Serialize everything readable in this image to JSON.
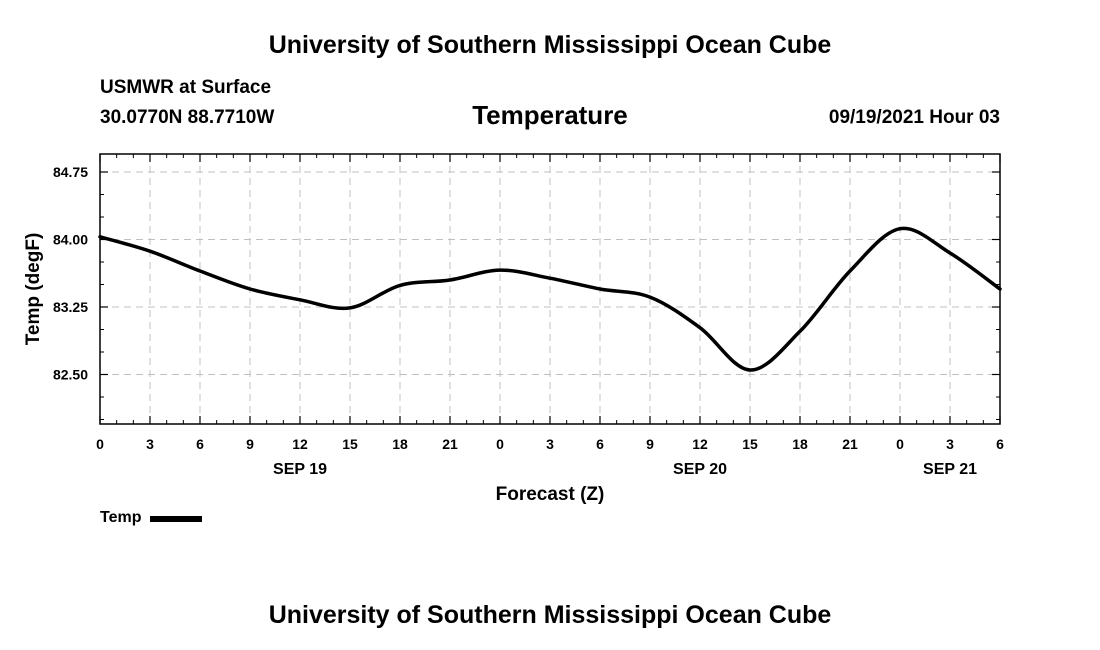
{
  "header": {
    "title": "University of Southern Mississippi Ocean Cube",
    "station": "USMWR at Surface",
    "coordinates": "30.0770N  88.7710W",
    "datetime": "09/19/2021 Hour 03"
  },
  "footer": {
    "title": "University of Southern Mississippi Ocean Cube"
  },
  "legend": {
    "label": "Temp"
  },
  "colors": {
    "line": "#000000",
    "grid": "#c0c0c0",
    "background": "#ffffff"
  },
  "chart_data": {
    "type": "line",
    "title": "Temperature",
    "xlabel": "Forecast (Z)",
    "ylabel": "Temp (degF)",
    "xlim": [
      0,
      54
    ],
    "ylim": [
      81.95,
      84.95
    ],
    "yticks": [
      84.75,
      84.0,
      83.25,
      82.5
    ],
    "ytick_labels": [
      "84.75",
      "84.00",
      "83.25",
      "82.50"
    ],
    "xticks": [
      0,
      3,
      6,
      9,
      12,
      15,
      18,
      21,
      24,
      27,
      30,
      33,
      36,
      39,
      42,
      45,
      48,
      51,
      54
    ],
    "xtick_labels": [
      "0",
      "3",
      "6",
      "9",
      "12",
      "15",
      "18",
      "21",
      "0",
      "3",
      "6",
      "9",
      "12",
      "15",
      "18",
      "21",
      "0",
      "3",
      "6"
    ],
    "date_labels": [
      {
        "hour": 12,
        "label": "SEP 19"
      },
      {
        "hour": 36,
        "label": "SEP 20"
      },
      {
        "hour": 51,
        "label": "SEP 21"
      }
    ],
    "grid": true,
    "series": [
      {
        "name": "Temp",
        "x": [
          0,
          3,
          6,
          9,
          12,
          15,
          18,
          21,
          24,
          27,
          30,
          33,
          36,
          39,
          42,
          45,
          48,
          51,
          54
        ],
        "values": [
          84.03,
          83.87,
          83.65,
          83.45,
          83.33,
          83.24,
          83.49,
          83.55,
          83.66,
          83.57,
          83.45,
          83.36,
          83.02,
          82.55,
          82.98,
          83.65,
          84.12,
          83.85,
          83.45
        ]
      }
    ]
  }
}
